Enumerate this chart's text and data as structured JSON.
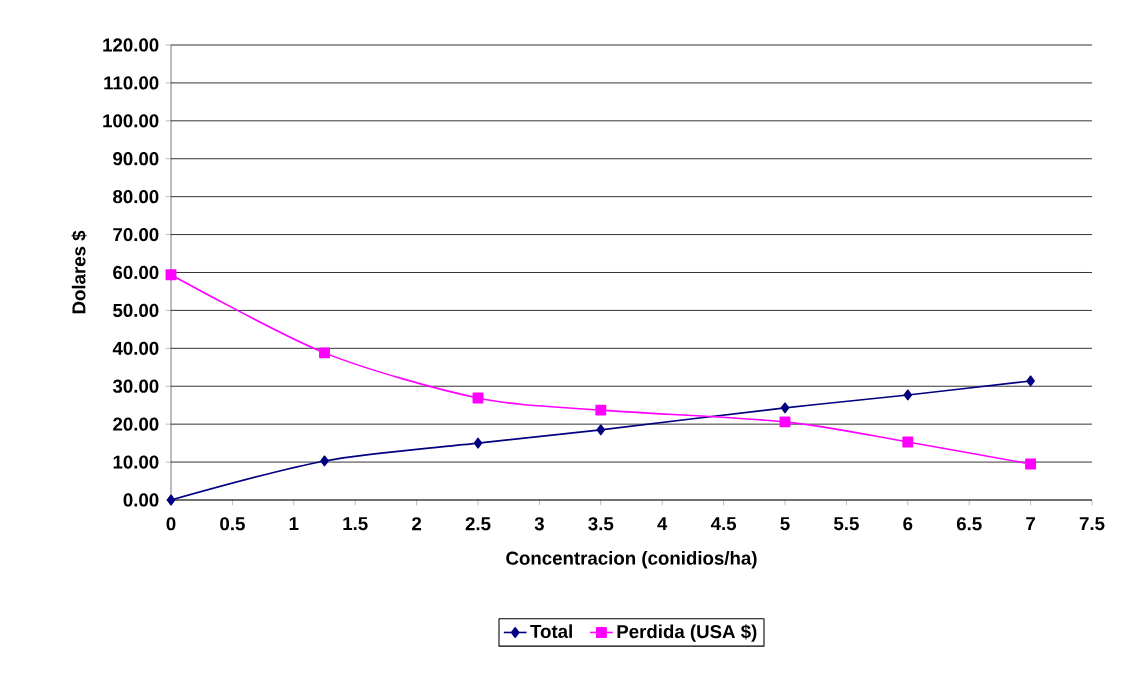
{
  "chart_data": {
    "type": "line",
    "xlabel": "Concentracion (conidios/ha)",
    "ylabel": "Dolares $",
    "xlim": [
      0,
      7.5
    ],
    "xticks": [
      0,
      0.5,
      1,
      1.5,
      2,
      2.5,
      3,
      3.5,
      4,
      4.5,
      5,
      5.5,
      6,
      6.5,
      7,
      7.5
    ],
    "ylim": [
      0,
      120
    ],
    "yticks": [
      {
        "value": 0,
        "label": "0.00"
      },
      {
        "value": 10,
        "label": "10.00"
      },
      {
        "value": 20,
        "label": "20.00"
      },
      {
        "value": 30,
        "label": "30.00"
      },
      {
        "value": 40,
        "label": "40.00"
      },
      {
        "value": 50,
        "label": "50.00"
      },
      {
        "value": 60,
        "label": "60.00"
      },
      {
        "value": 70,
        "label": "70.00"
      },
      {
        "value": 80,
        "label": "80.00"
      },
      {
        "value": 90,
        "label": "90.00"
      },
      {
        "value": 100,
        "label": "100.00"
      },
      {
        "value": 110,
        "label": "110.00"
      },
      {
        "value": 120,
        "label": "120.00"
      }
    ],
    "x": [
      0,
      1.25,
      2.5,
      3.5,
      5,
      6,
      7
    ],
    "grid": "y",
    "legend": "bottom",
    "line_style": "solid",
    "series": [
      {
        "name": "Total",
        "color": "#000080",
        "marker": "diamond",
        "values": [
          0,
          10.3,
          15.0,
          18.5,
          24.3,
          27.7,
          31.4
        ]
      },
      {
        "name": "Perdida (USA $)",
        "color": "#ff00ff",
        "marker": "square",
        "values": [
          59.4,
          38.8,
          26.9,
          23.7,
          20.6,
          15.3,
          9.5
        ]
      }
    ]
  }
}
